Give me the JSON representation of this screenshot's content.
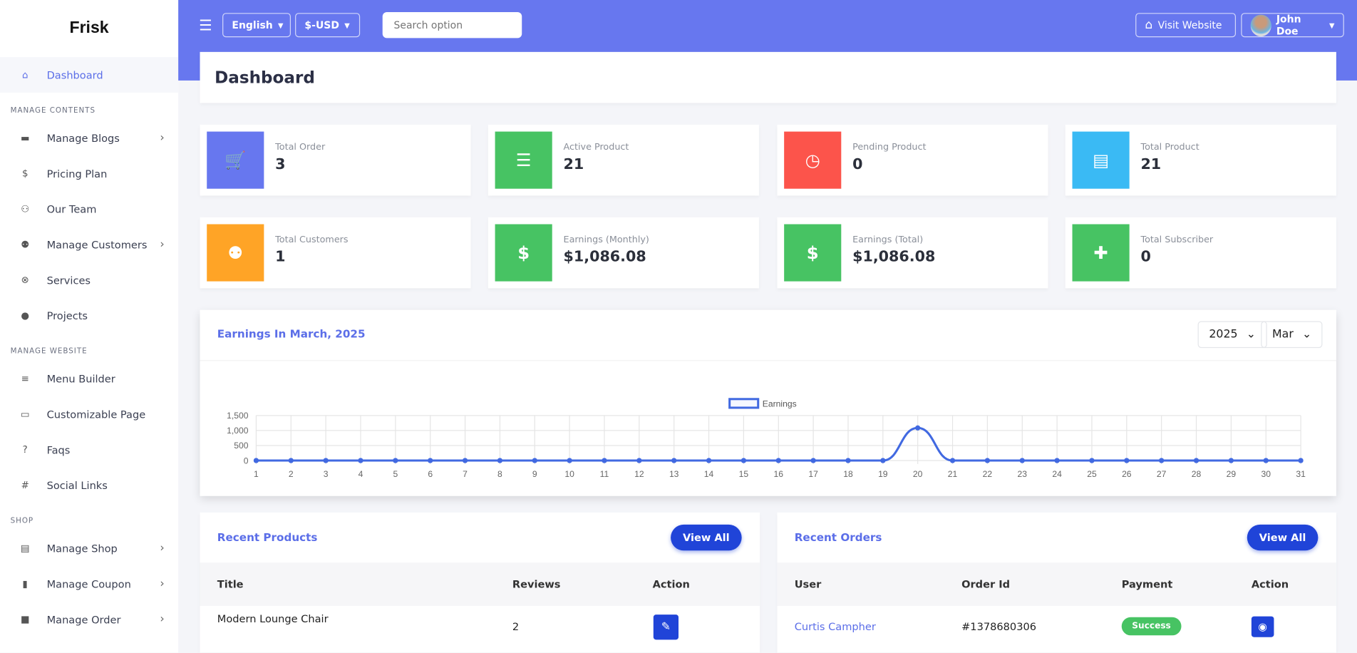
{
  "brand": "Frisk",
  "sidebar": {
    "items": [
      {
        "label": "Dashboard",
        "icon": "home-icon",
        "active": true
      },
      {
        "section": "MANAGE CONTENTS"
      },
      {
        "label": "Manage Blogs",
        "icon": "blog-icon",
        "chevron": true
      },
      {
        "label": "Pricing Plan",
        "icon": "dollar-icon"
      },
      {
        "label": "Our Team",
        "icon": "team-icon"
      },
      {
        "label": "Manage Customers",
        "icon": "users-icon",
        "chevron": true
      },
      {
        "label": "Services",
        "icon": "services-icon"
      },
      {
        "label": "Projects",
        "icon": "lightbulb-icon"
      },
      {
        "section": "MANAGE WEBSITE"
      },
      {
        "label": "Menu Builder",
        "icon": "menu-icon"
      },
      {
        "label": "Customizable Page",
        "icon": "page-icon"
      },
      {
        "label": "Faqs",
        "icon": "question-icon"
      },
      {
        "label": "Social Links",
        "icon": "hash-icon"
      },
      {
        "section": "SHOP"
      },
      {
        "label": "Manage Shop",
        "icon": "store-icon",
        "chevron": true
      },
      {
        "label": "Manage Coupon",
        "icon": "coupon-icon",
        "chevron": true
      },
      {
        "label": "Manage Order",
        "icon": "bag-icon",
        "chevron": true
      }
    ]
  },
  "topbar": {
    "language": "English",
    "currency": "$-USD",
    "search_placeholder": "Search option",
    "visit": "Visit Website",
    "user": "John Doe"
  },
  "page_title": "Dashboard",
  "stats": [
    {
      "label": "Total Order",
      "value": "3",
      "color": "#6777ef",
      "icon": "cart-icon"
    },
    {
      "label": "Active Product",
      "value": "21",
      "color": "#47c363",
      "icon": "list-icon"
    },
    {
      "label": "Pending Product",
      "value": "0",
      "color": "#fc544b",
      "icon": "clock-icon"
    },
    {
      "label": "Total Product",
      "value": "21",
      "color": "#3abaf4",
      "icon": "product-list-icon"
    },
    {
      "label": "Total Customers",
      "value": "1",
      "color": "#ffa426",
      "icon": "customers-icon"
    },
    {
      "label": "Earnings (Monthly)",
      "value": "$1,086.08",
      "color": "#47c363",
      "icon": "dollar-icon"
    },
    {
      "label": "Earnings (Total)",
      "value": "$1,086.08",
      "color": "#47c363",
      "icon": "dollar-icon"
    },
    {
      "label": "Total Subscriber",
      "value": "0",
      "color": "#47c363",
      "icon": "user-plus-icon"
    }
  ],
  "earnings": {
    "title": "Earnings In March, 2025",
    "year": "2025",
    "month": "Mar"
  },
  "chart_data": {
    "type": "line",
    "title": "",
    "legend": [
      "Earnings"
    ],
    "legend_position": "top",
    "xlabel": "",
    "ylabel": "",
    "x": [
      1,
      2,
      3,
      4,
      5,
      6,
      7,
      8,
      9,
      10,
      11,
      12,
      13,
      14,
      15,
      16,
      17,
      18,
      19,
      20,
      21,
      22,
      23,
      24,
      25,
      26,
      27,
      28,
      29,
      30,
      31
    ],
    "series": [
      {
        "name": "Earnings",
        "values": [
          0,
          0,
          0,
          0,
          0,
          0,
          0,
          0,
          0,
          0,
          0,
          0,
          0,
          0,
          0,
          0,
          0,
          0,
          0,
          1086.08,
          0,
          0,
          0,
          0,
          0,
          0,
          0,
          0,
          0,
          0,
          0
        ]
      }
    ],
    "ylim": [
      0,
      1500
    ],
    "yticks": [
      "0",
      "500",
      "1,000",
      "1,500"
    ],
    "grid": true
  },
  "recent_products": {
    "title": "Recent Products",
    "view_all": "View All",
    "headers": [
      "Title",
      "Reviews",
      "Action"
    ],
    "rows": [
      {
        "title": "Modern Lounge Chair",
        "reviews": "2"
      }
    ]
  },
  "recent_orders": {
    "title": "Recent Orders",
    "view_all": "View All",
    "headers": [
      "User",
      "Order Id",
      "Payment",
      "Action"
    ],
    "rows": [
      {
        "user": "Curtis Campher",
        "order_id": "#1378680306",
        "payment": "Success"
      }
    ]
  }
}
